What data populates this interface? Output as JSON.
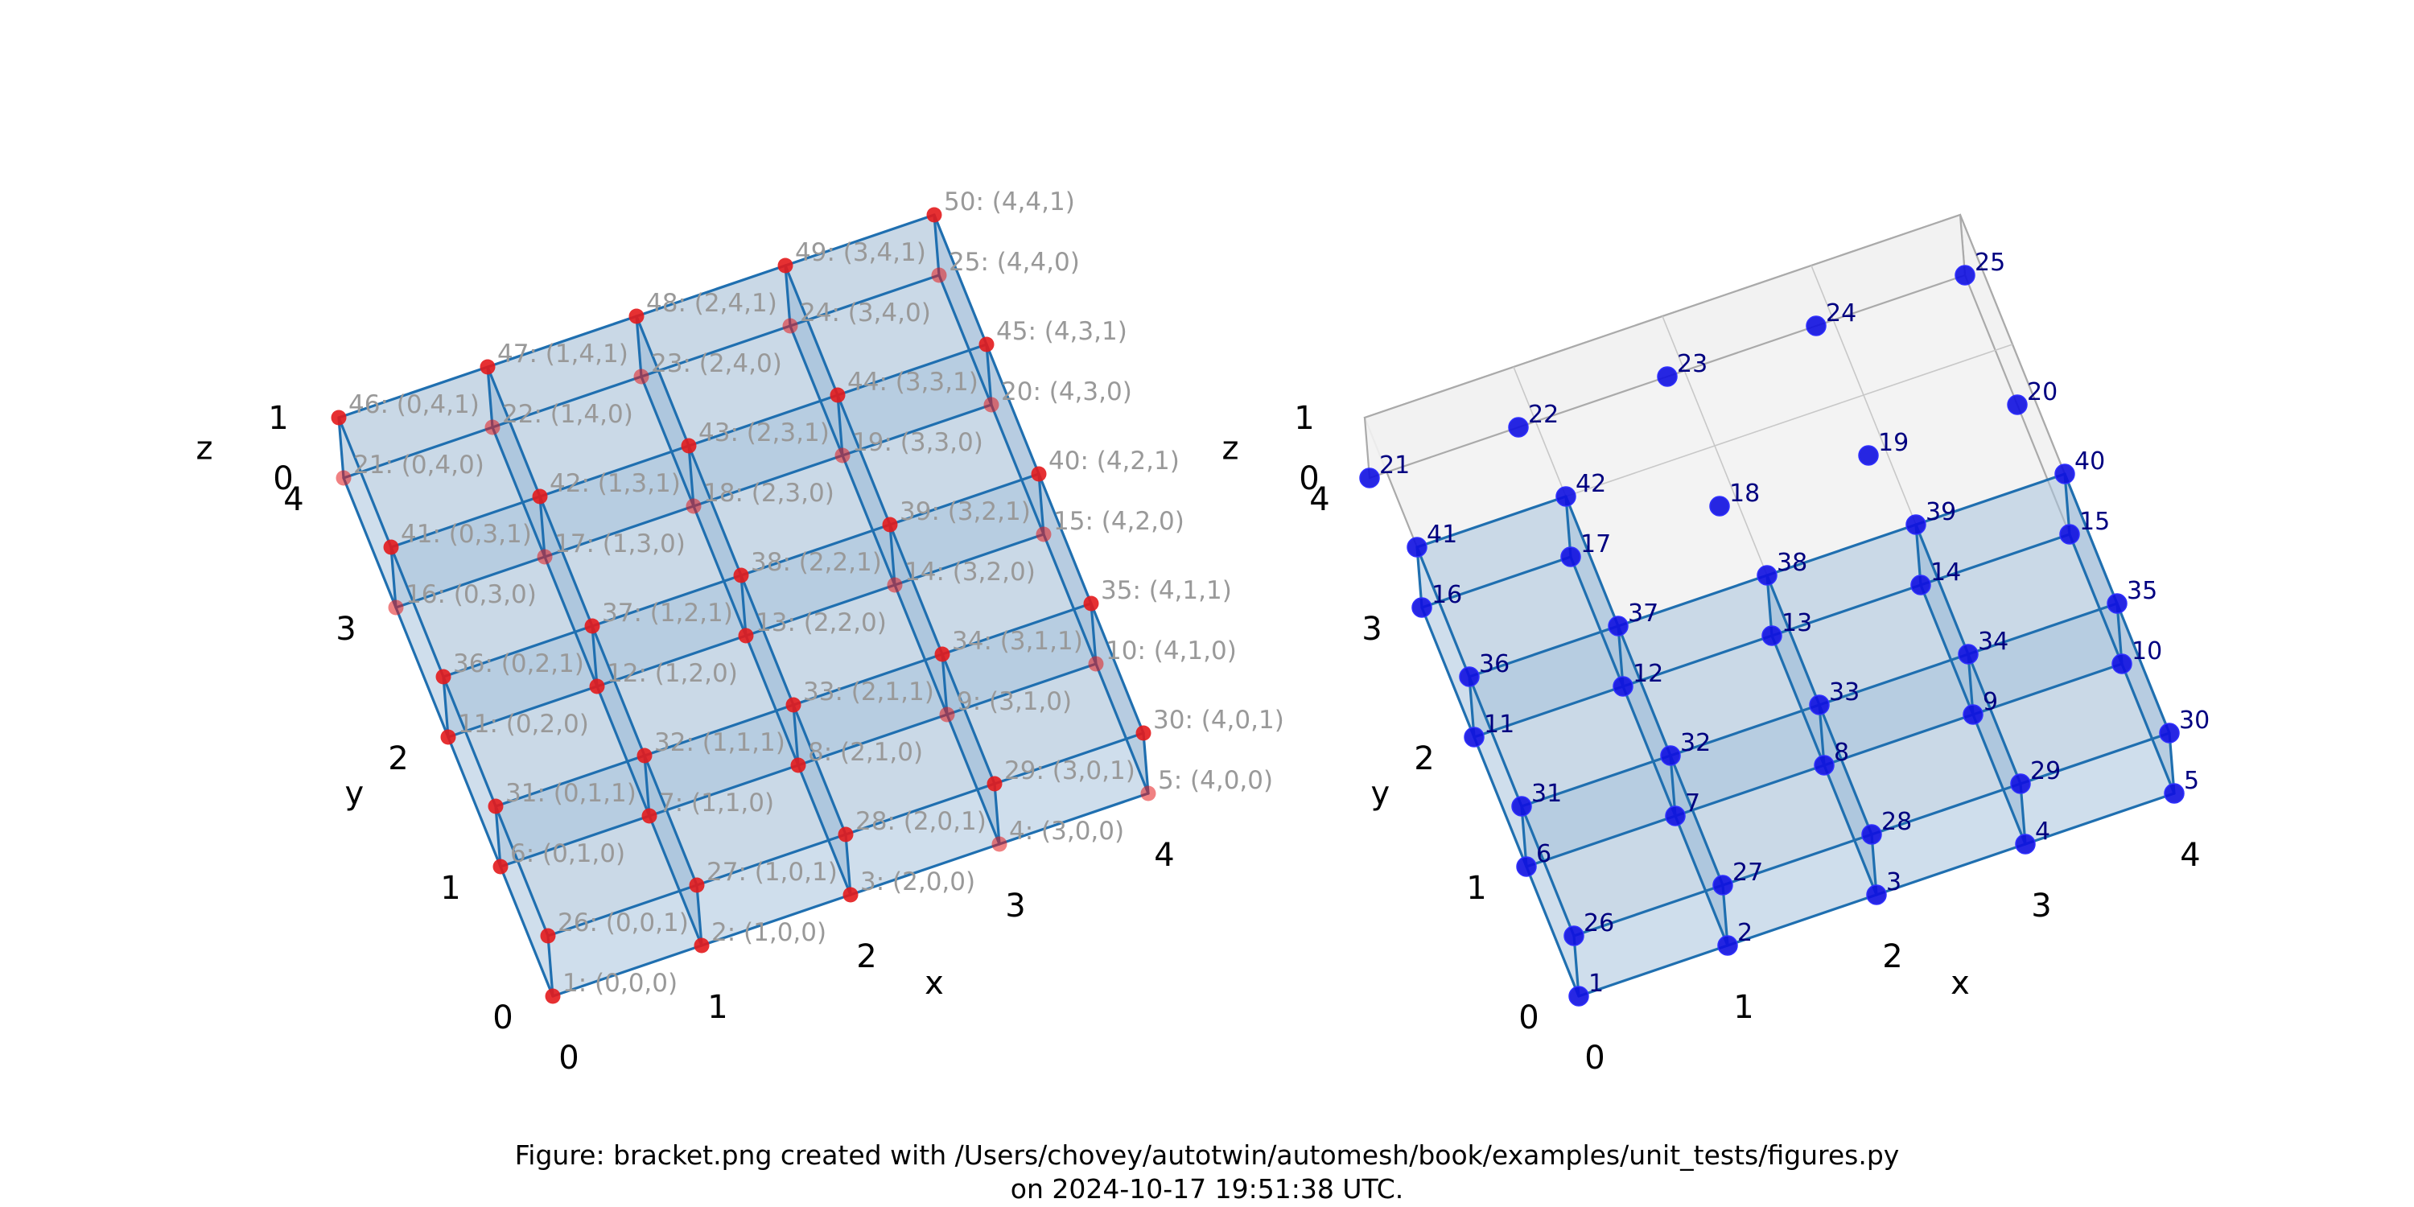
{
  "axes_labels": {
    "x": "x",
    "y": "y",
    "z": "z"
  },
  "ticks": {
    "x": [
      "0",
      "1",
      "2",
      "3",
      "4"
    ],
    "y": [
      "0",
      "1",
      "2",
      "3",
      "4"
    ],
    "z": [
      "0",
      "1"
    ]
  },
  "caption": {
    "line1": "Figure: bracket.png created with /Users/chovey/autotwin/automesh/book/examples/unit_tests/figures.py",
    "line2": "on 2024-10-17 19:51:38 UTC."
  },
  "colors": {
    "left_points": "#e31a1c",
    "right_points": "#1010e0",
    "edge": "#1f6fb0",
    "face": "#a8c3dc",
    "left_label": "#999999",
    "right_label": "#000080",
    "box_face": "#f2f2f2",
    "box_edge": "#aaaaaa"
  },
  "chart_data": {
    "type": "scatter",
    "panels": [
      {
        "name": "left",
        "label_style": "id-and-coords",
        "axes": {
          "xlim": [
            0,
            4
          ],
          "ylim": [
            0,
            4
          ],
          "zlim": [
            0,
            1
          ]
        },
        "points": [
          {
            "id": 1,
            "label": "1: (0,0,0)"
          },
          {
            "id": 2,
            "label": "2: (1,0,0)"
          },
          {
            "id": 3,
            "label": "3: (2,0,0)"
          },
          {
            "id": 4,
            "label": "4: (3,0,0)"
          },
          {
            "id": 5,
            "label": "5: (4,0,0)"
          },
          {
            "id": 6,
            "label": "6: (0,1,0)"
          },
          {
            "id": 7,
            "label": "7: (1,1,0)"
          },
          {
            "id": 8,
            "label": "8: (2,1,0)"
          },
          {
            "id": 9,
            "label": "9: (3,1,0)"
          },
          {
            "id": 10,
            "label": "10: (4,1,0)"
          },
          {
            "id": 11,
            "label": "11: (0,2,0)"
          },
          {
            "id": 12,
            "label": "12: (1,2,0)"
          },
          {
            "id": 13,
            "label": "13: (2,2,0)"
          },
          {
            "id": 14,
            "label": "14: (3,2,0)"
          },
          {
            "id": 15,
            "label": "15: (4,2,0)"
          },
          {
            "id": 16,
            "label": "16: (0,3,0)"
          },
          {
            "id": 17,
            "label": "17: (1,3,0)"
          },
          {
            "id": 18,
            "label": "18: (2,3,0)"
          },
          {
            "id": 19,
            "label": "19: (3,3,0)"
          },
          {
            "id": 20,
            "label": "20: (4,3,0)"
          },
          {
            "id": 21,
            "label": "21: (0,4,0)"
          },
          {
            "id": 22,
            "label": "22: (1,4,0)"
          },
          {
            "id": 23,
            "label": "23: (2,4,0)"
          },
          {
            "id": 24,
            "label": "24: (3,4,0)"
          },
          {
            "id": 25,
            "label": "25: (4,4,0)"
          },
          {
            "id": 26,
            "label": "26: (0,0,1)"
          },
          {
            "id": 27,
            "label": "27: (1,0,1)"
          },
          {
            "id": 28,
            "label": "28: (2,0,1)"
          },
          {
            "id": 29,
            "label": "29: (3,0,1)"
          },
          {
            "id": 30,
            "label": "30: (4,0,1)"
          },
          {
            "id": 31,
            "label": "31: (0,1,1)"
          },
          {
            "id": 32,
            "label": "32: (1,1,1)"
          },
          {
            "id": 33,
            "label": "33: (2,1,1)"
          },
          {
            "id": 34,
            "label": "34: (3,1,1)"
          },
          {
            "id": 35,
            "label": "35: (4,1,1)"
          },
          {
            "id": 36,
            "label": "36: (0,2,1)"
          },
          {
            "id": 37,
            "label": "37: (1,2,1)"
          },
          {
            "id": 38,
            "label": "38: (2,2,1)"
          },
          {
            "id": 39,
            "label": "39: (3,2,1)"
          },
          {
            "id": 40,
            "label": "40: (4,2,1)"
          },
          {
            "id": 41,
            "label": "41: (0,3,1)"
          },
          {
            "id": 42,
            "label": "42: (1,3,1)"
          },
          {
            "id": 43,
            "label": "43: (2,3,1)"
          },
          {
            "id": 44,
            "label": "44: (3,3,1)"
          },
          {
            "id": 45,
            "label": "45: (4,3,1)"
          },
          {
            "id": 46,
            "label": "46: (0,4,1)"
          },
          {
            "id": 47,
            "label": "47: (1,4,1)"
          },
          {
            "id": 48,
            "label": "48: (2,4,1)"
          },
          {
            "id": 49,
            "label": "49: (3,4,1)"
          },
          {
            "id": 50,
            "label": "50: (4,4,1)"
          }
        ]
      },
      {
        "name": "right",
        "label_style": "id-only",
        "axes": {
          "xlim": [
            0,
            4
          ],
          "ylim": [
            0,
            4
          ],
          "zlim": [
            0,
            1
          ]
        },
        "point_ids": [
          1,
          2,
          3,
          4,
          5,
          6,
          7,
          8,
          9,
          10,
          11,
          12,
          13,
          14,
          15,
          16,
          17,
          18,
          19,
          20,
          21,
          22,
          23,
          24,
          25,
          26,
          27,
          28,
          29,
          30,
          31,
          32,
          33,
          34,
          35,
          36,
          37,
          38,
          39,
          40,
          41,
          42
        ]
      }
    ]
  }
}
